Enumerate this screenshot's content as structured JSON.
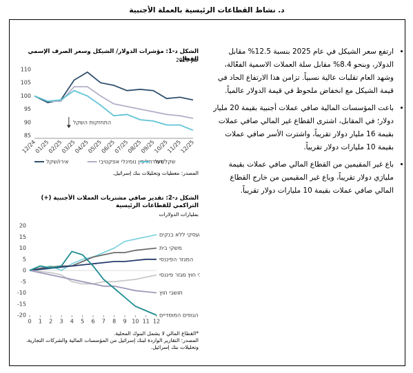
{
  "header": {
    "title": "د.    نشاط القطاعات الرئيسية بالعملة الأجنبية"
  },
  "bullets": [
    "ارتفع سعر الشيكل في عام 2025 بنسبة 12.5% مقابل الدولار، وبنحو 8.4% مقابل سلة العملات الاسمية الفعّالة، وشهد العام تقلبات عالية نسبياً. تزامن هذا الارتفاع الحاد في قيمة الشيكل مع انخفاض ملحوظ في قيمة الدولار عالمياً.",
    "باعت المؤسسات المالية صافي عملات أجنبية بقيمة 20 مليار دولار؛ في المقابل، اشترى القطاع غير المالي صافي عملات بقيمة 16 مليار دولار تقريباً، واشترت الأسر صافي عملات بقيمة 10 مليارات دولار تقريباً.",
    "باع غير المقيمين من القطاع المالي صافي عملات بقيمة مليارَي دولار تقريباً، وباع غير المقيمين من خارج القطاع المالي صافي عملات بقيمة 10 مليارات دولار تقريباً."
  ],
  "chart_data": [
    {
      "type": "line",
      "title": "الشكل د-1: مؤشرات الدولار/ الشيكل وسعر الصرف الإسمي الفعال",
      "subtitle": "عام 2025",
      "annotation": "התחזקות השקל",
      "categories": [
        "12/24",
        "01/25",
        "02/25",
        "03/25",
        "04/25",
        "05/25",
        "06/25",
        "07/25",
        "08/25",
        "09/25",
        "10/25",
        "11/25",
        "12/25"
      ],
      "series": [
        {
          "name": "אירו/שקל",
          "color": "#2f4f6b",
          "values": [
            100,
            97.5,
            98.5,
            106,
            109,
            105,
            104,
            102,
            102.5,
            102,
            99,
            99.5,
            98.5
          ]
        },
        {
          "name": "שער חליפין נומינלי אפקטיבי",
          "color": "#b3aec8",
          "values": [
            100,
            98,
            98,
            103.5,
            103.5,
            100,
            97,
            96,
            95,
            94,
            93,
            92.5,
            91.5
          ]
        },
        {
          "name": "שקל/דולר",
          "color": "#5fc3d6",
          "values": [
            100,
            98,
            98.5,
            102,
            100,
            96.5,
            92.5,
            93,
            91,
            90.5,
            89,
            89,
            87
          ]
        }
      ],
      "ylim": [
        85,
        110
      ],
      "yticks": [
        85,
        90,
        95,
        100,
        105,
        110
      ],
      "grid": false,
      "legend": "bottom",
      "source": "المصدر: معطيات وتحليلات بنك إسرائيل."
    },
    {
      "type": "line",
      "title": "الشكل د-2: تقدير صافي مشتريات العملات الأجنبية (+) التراكمي للقطاعات الرئيسية",
      "subtitle": "بمليارات الدولارات",
      "x": [
        0,
        1,
        2,
        3,
        4,
        5,
        6,
        7,
        8,
        9,
        10,
        11,
        12
      ],
      "series": [
        {
          "name": "המגזר העסקי ללא בנקים",
          "color": "#7fd3df",
          "values": [
            0,
            1,
            2,
            0,
            3,
            5,
            6,
            8,
            10,
            13,
            14,
            15,
            16
          ]
        },
        {
          "name": "משקי בית",
          "color": "#6b6b6b",
          "values": [
            0,
            1,
            1.5,
            2,
            2,
            4,
            6,
            7,
            8,
            8,
            9,
            9.5,
            10
          ]
        },
        {
          "name": "המגזר הפיננסי",
          "color": "#243a6b",
          "values": [
            0,
            0.5,
            1,
            1.5,
            2,
            2.5,
            3,
            3.5,
            4,
            4,
            4.5,
            5,
            5
          ]
        },
        {
          "name": "תושבי חוץ מגזר פיננסי",
          "color": "#c8c8c8",
          "values": [
            0,
            -0.5,
            -1,
            -2,
            -5,
            -6,
            -6,
            -5,
            -5,
            -4.5,
            -4,
            -3,
            -2
          ]
        },
        {
          "name": "תושבי חוץ",
          "color": "#9e98b8",
          "values": [
            0,
            -1,
            -2,
            -3,
            -4,
            -5,
            -6,
            -7,
            -7,
            -8,
            -9,
            -9.5,
            -10
          ]
        },
        {
          "name": "הגופים המוסדיים",
          "color": "#1b8a8f",
          "values": [
            0,
            2,
            1,
            2,
            8.5,
            7,
            2,
            -4,
            -8,
            -12,
            -16,
            -18,
            -20
          ]
        }
      ],
      "xlim": [
        0,
        12
      ],
      "xticks": [
        0,
        1,
        2,
        3,
        4,
        5,
        6,
        7,
        8,
        9,
        10,
        11,
        12
      ],
      "ylim": [
        -20,
        20
      ],
      "yticks": [
        -20,
        -15,
        -10,
        -5,
        0,
        5,
        10,
        15,
        20
      ],
      "grid": false,
      "legend": "inline",
      "notes": [
        "*القطاع المالي لا يشمل البنوك المحلية.",
        "المصدر: التقارير الواردة لبنك إسرائيل من المؤسسات المالية والشركات التجارية، وتحليلات بنك إسرائيل."
      ]
    }
  ]
}
